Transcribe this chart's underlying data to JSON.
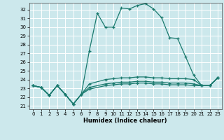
{
  "xlabel": "Humidex (Indice chaleur)",
  "bg_color": "#cce8ec",
  "grid_color": "#ffffff",
  "line_color": "#1a7a6e",
  "xlim": [
    -0.5,
    23.5
  ],
  "ylim": [
    20.6,
    32.8
  ],
  "yticks": [
    21,
    22,
    23,
    24,
    25,
    26,
    27,
    28,
    29,
    30,
    31,
    32
  ],
  "xticks": [
    0,
    1,
    2,
    3,
    4,
    5,
    6,
    7,
    8,
    9,
    10,
    11,
    12,
    13,
    14,
    15,
    16,
    17,
    18,
    19,
    20,
    21,
    22,
    23
  ],
  "line1_x": [
    0,
    1,
    2,
    3,
    4,
    5,
    6,
    7,
    8,
    9,
    10,
    11,
    12,
    13,
    14,
    15,
    16,
    17,
    18,
    19,
    20,
    21,
    22,
    23
  ],
  "line1_y": [
    23.3,
    23.1,
    22.2,
    23.3,
    22.3,
    21.2,
    22.3,
    27.3,
    31.6,
    30.0,
    30.0,
    32.2,
    32.1,
    32.5,
    32.7,
    32.1,
    31.1,
    28.8,
    28.7,
    26.6,
    24.5,
    23.3,
    23.3,
    24.2
  ],
  "line2_x": [
    0,
    1,
    2,
    3,
    4,
    5,
    6,
    7,
    9,
    10,
    11,
    12,
    13,
    14,
    15,
    16,
    17,
    18,
    19,
    20,
    21,
    22,
    23
  ],
  "line2_y": [
    23.3,
    23.1,
    22.2,
    23.3,
    22.3,
    21.2,
    22.3,
    23.5,
    24.0,
    24.1,
    24.2,
    24.2,
    24.3,
    24.3,
    24.2,
    24.2,
    24.1,
    24.1,
    24.1,
    24.0,
    23.3,
    23.3,
    24.2
  ],
  "line3_x": [
    0,
    1,
    2,
    3,
    4,
    5,
    6,
    7,
    9,
    10,
    11,
    12,
    13,
    14,
    15,
    16,
    17,
    18,
    19,
    20,
    21,
    22,
    23
  ],
  "line3_y": [
    23.3,
    23.1,
    22.2,
    23.3,
    22.3,
    21.2,
    22.3,
    23.1,
    23.5,
    23.6,
    23.7,
    23.7,
    23.8,
    23.8,
    23.7,
    23.7,
    23.6,
    23.6,
    23.6,
    23.5,
    23.3,
    23.3,
    24.2
  ],
  "line4_x": [
    0,
    1,
    2,
    3,
    4,
    5,
    6,
    7,
    9,
    10,
    11,
    12,
    13,
    14,
    15,
    16,
    17,
    18,
    19,
    20,
    21,
    22,
    23
  ],
  "line4_y": [
    23.3,
    23.1,
    22.2,
    23.3,
    22.3,
    21.2,
    22.3,
    22.9,
    23.3,
    23.4,
    23.5,
    23.5,
    23.6,
    23.6,
    23.5,
    23.5,
    23.4,
    23.4,
    23.4,
    23.3,
    23.3,
    23.3,
    24.2
  ]
}
